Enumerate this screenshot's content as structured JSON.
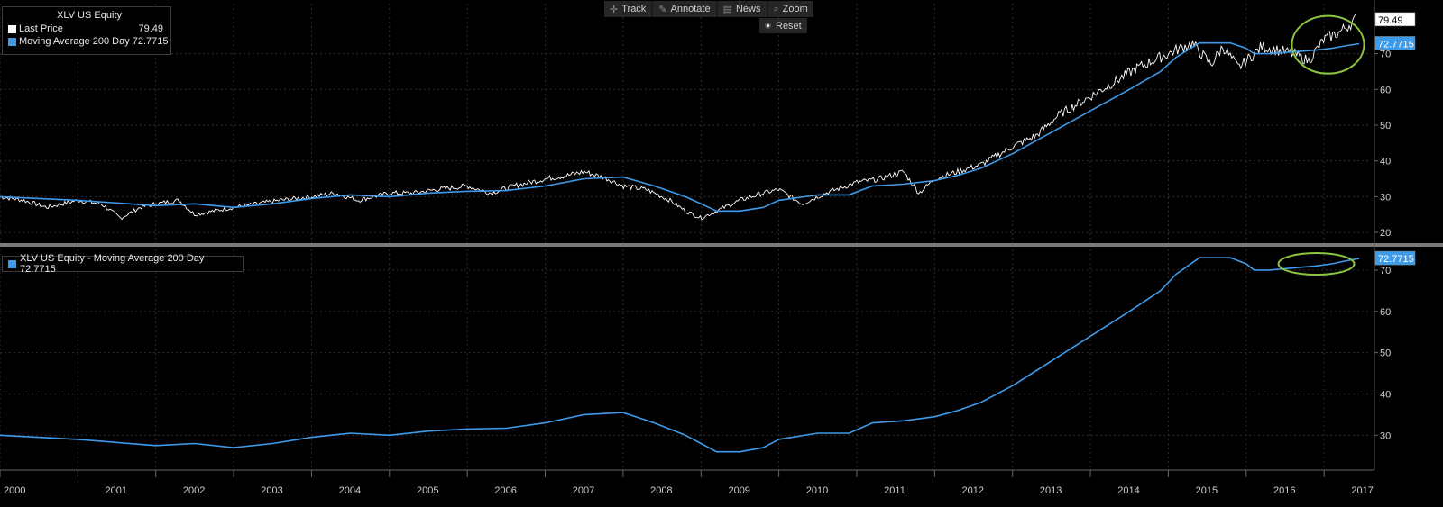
{
  "toolbar": {
    "track": "Track",
    "annotate": "Annotate",
    "news": "News",
    "zoom": "Zoom",
    "reset": "Reset"
  },
  "legend_top": {
    "title": "XLV US Equity",
    "last_price_label": "Last Price",
    "last_price_value": "79.49",
    "ma_label": "Moving Average 200 Day 72.7715"
  },
  "legend_bottom": {
    "label": "XLV US Equity - Moving Average 200 Day 72.7715"
  },
  "colors": {
    "price": "#ffffff",
    "ma": "#3d9be9",
    "grid": "#2e2e2e",
    "highlight": "#8cc63f"
  },
  "chart_data": [
    {
      "type": "line",
      "title": "XLV US Equity",
      "ylim": [
        17,
        84
      ],
      "yticks": [
        20,
        30,
        40,
        50,
        60,
        70
      ],
      "xlim": [
        2000.0,
        2017.6
      ],
      "last_price_badge": "79.49",
      "ma_badge": "72.7715",
      "series": [
        {
          "name": "Last Price",
          "x": [
            2000.0,
            2000.3,
            2000.6,
            2001.0,
            2001.3,
            2001.55,
            2001.8,
            2002.0,
            2002.3,
            2002.5,
            2002.75,
            2003.0,
            2003.3,
            2003.6,
            2004.0,
            2004.3,
            2004.6,
            2005.0,
            2005.3,
            2005.6,
            2006.0,
            2006.3,
            2006.6,
            2007.0,
            2007.3,
            2007.5,
            2007.8,
            2008.0,
            2008.3,
            2008.6,
            2008.8,
            2009.0,
            2009.2,
            2009.5,
            2009.8,
            2010.0,
            2010.3,
            2010.6,
            2011.0,
            2011.3,
            2011.6,
            2011.8,
            2012.0,
            2012.3,
            2012.6,
            2013.0,
            2013.3,
            2013.6,
            2014.0,
            2014.3,
            2014.6,
            2015.0,
            2015.3,
            2015.55,
            2015.7,
            2015.9,
            2016.0,
            2016.2,
            2016.4,
            2016.6,
            2016.8,
            2017.0,
            2017.2,
            2017.4
          ],
          "values": [
            30,
            29,
            27,
            29,
            28,
            24,
            27,
            28,
            29,
            25,
            26,
            27,
            28,
            29,
            30,
            31,
            29,
            31,
            31,
            32,
            33,
            31,
            33,
            35,
            36,
            37,
            35,
            33,
            32,
            29,
            26,
            24,
            26,
            29,
            31,
            32,
            28,
            31,
            34,
            35,
            37,
            31,
            35,
            37,
            39,
            44,
            47,
            53,
            58,
            62,
            66,
            70,
            73,
            67,
            72,
            66,
            68,
            72,
            71,
            70,
            68,
            74,
            76,
            79.5
          ]
        },
        {
          "name": "Moving Average 200 Day",
          "x": [
            2000.0,
            2001.0,
            2002.0,
            2002.5,
            2003.0,
            2003.5,
            2004.0,
            2004.5,
            2005.0,
            2005.5,
            2006.0,
            2006.5,
            2007.0,
            2007.5,
            2008.0,
            2008.4,
            2008.8,
            2009.0,
            2009.2,
            2009.5,
            2009.8,
            2010.0,
            2010.5,
            2010.9,
            2011.2,
            2011.6,
            2012.0,
            2012.3,
            2012.6,
            2013.0,
            2013.5,
            2014.0,
            2014.5,
            2014.9,
            2015.1,
            2015.4,
            2015.6,
            2015.8,
            2016.0,
            2016.1,
            2016.3,
            2016.6,
            2016.9,
            2017.1,
            2017.3,
            2017.45
          ],
          "values": [
            30,
            29,
            27.5,
            28,
            27,
            28,
            29.5,
            30.5,
            30,
            31,
            31.5,
            31.7,
            33,
            35,
            35.5,
            33,
            30,
            28,
            26,
            26,
            27,
            29,
            30.5,
            30.5,
            33,
            33.5,
            34.5,
            36,
            38,
            42,
            48,
            54,
            60,
            65,
            69,
            73,
            73,
            73,
            71.5,
            70,
            70,
            70.5,
            71,
            71.5,
            72.3,
            72.8
          ]
        }
      ],
      "annotation": "green ellipse around latest prices"
    },
    {
      "type": "line",
      "title": "XLV US Equity - Moving Average 200 Day",
      "ylim": [
        22,
        75
      ],
      "yticks": [
        30,
        40,
        50,
        60,
        70
      ],
      "xlim": [
        2000.0,
        2017.6
      ],
      "ma_badge": "72.7715",
      "series": [
        {
          "name": "Moving Average 200 Day",
          "ref": 1
        }
      ],
      "annotation": "green ellipse around latest values"
    }
  ],
  "xaxis": {
    "labels": [
      "2000",
      "2001",
      "2002",
      "2003",
      "2004",
      "2005",
      "2006",
      "2007",
      "2008",
      "2009",
      "2010",
      "2011",
      "2012",
      "2013",
      "2014",
      "2015",
      "2016",
      "2017"
    ]
  }
}
